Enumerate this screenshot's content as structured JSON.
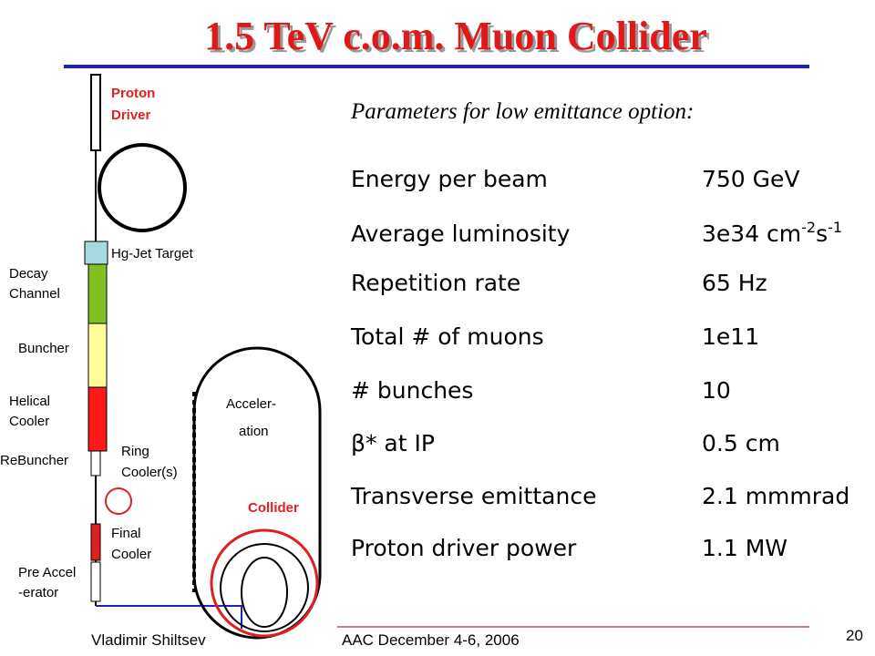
{
  "title": "1.5 TeV c.o.m. Muon Collider",
  "subtitle": "Parameters for low emittance option:",
  "diagram": {
    "labels": [
      "Proton",
      "Driver",
      "Hg-Jet Target",
      "Decay",
      "Channel",
      "Buncher",
      "Helical",
      "Cooler",
      "ReBuncher",
      "Ring",
      "Cooler(s)",
      "Final",
      "Cooler",
      "Pre Accel",
      "-erator",
      "Acceler-",
      "ation",
      "Collider"
    ]
  },
  "parameters": [
    {
      "label": "Energy per beam",
      "value": [
        "750 GeV"
      ]
    },
    {
      "label": "Average luminosity",
      "value": [
        "3e34 cm",
        "-2",
        "s",
        "-1"
      ]
    },
    {
      "label": "Repetition rate",
      "value": [
        "65 Hz"
      ]
    },
    {
      "label": "Total # of muons",
      "value": [
        "1e11"
      ]
    },
    {
      "label": "# bunches",
      "value": [
        "10"
      ]
    },
    {
      "label": " β* at IP",
      "value": [
        "0.5 cm"
      ]
    },
    {
      "label": "Transverse emittance",
      "value": [
        "2.1 mmmrad"
      ]
    },
    {
      "label": "Proton driver power",
      "value": [
        "1.1 MW"
      ]
    }
  ],
  "footer": {
    "author": "Vladimir Shiltsev",
    "event": "AAC December 4-6, 2006",
    "page": "20"
  }
}
